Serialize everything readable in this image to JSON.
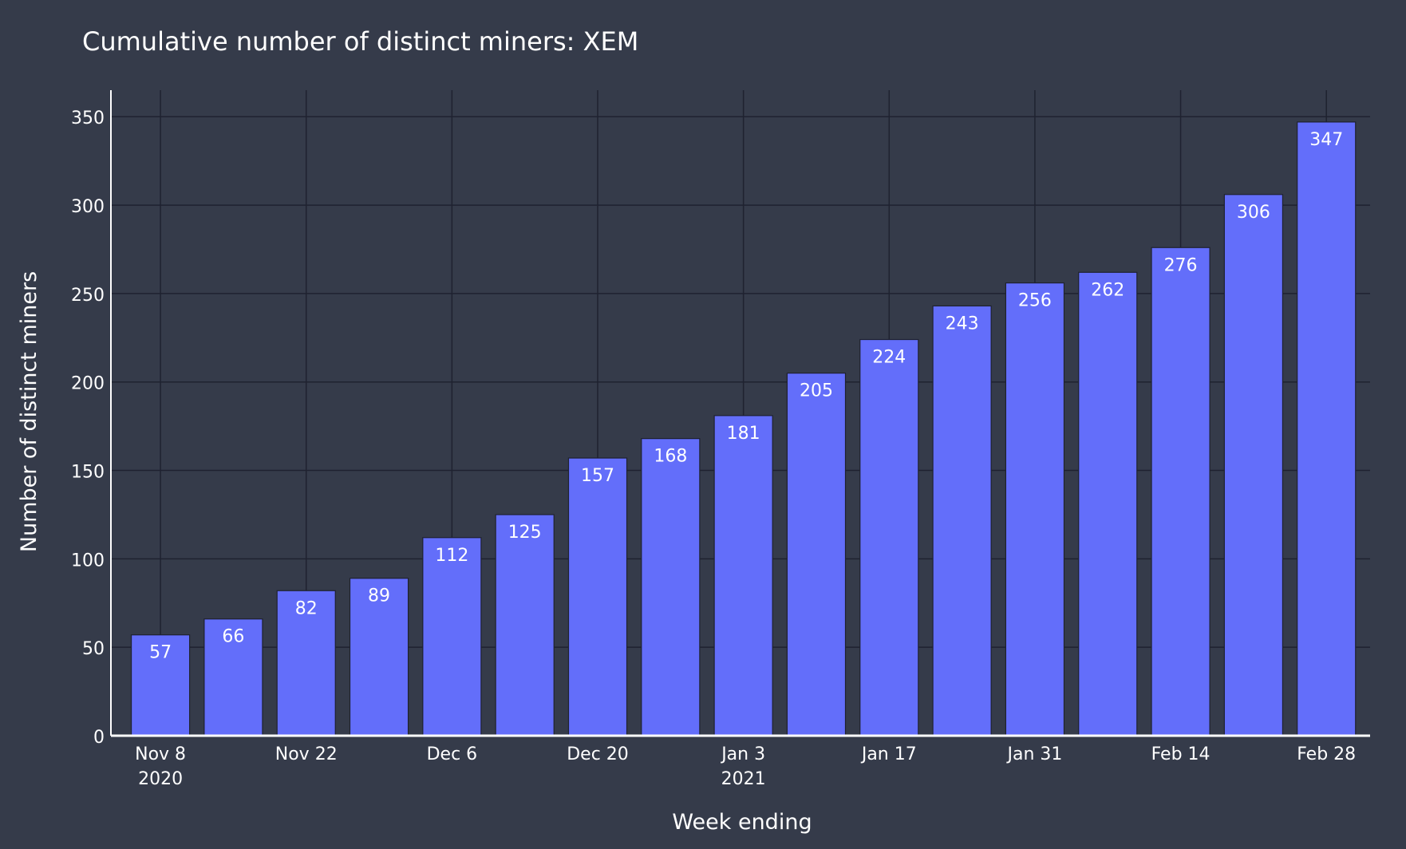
{
  "chart_data": {
    "type": "bar",
    "title": "Cumulative number of distinct miners: XEM",
    "xlabel": "Week ending",
    "ylabel": "Number of distinct miners",
    "categories": [
      "2020-11-08",
      "2020-11-15",
      "2020-11-22",
      "2020-11-29",
      "2020-12-06",
      "2020-12-13",
      "2020-12-20",
      "2020-12-27",
      "2021-01-03",
      "2021-01-10",
      "2021-01-17",
      "2021-01-24",
      "2021-01-31",
      "2021-02-07",
      "2021-02-14",
      "2021-02-21",
      "2021-02-28"
    ],
    "values": [
      57,
      66,
      82,
      89,
      112,
      125,
      157,
      168,
      181,
      205,
      224,
      243,
      256,
      262,
      276,
      306,
      347
    ],
    "data_labels": [
      "57",
      "66",
      "82",
      "89",
      "112",
      "125",
      "157",
      "168",
      "181",
      "205",
      "224",
      "243",
      "256",
      "262",
      "276",
      "306",
      "347"
    ],
    "ylim": [
      0,
      365
    ],
    "y_ticks": [
      0,
      50,
      100,
      150,
      200,
      250,
      300,
      350
    ],
    "y_tick_labels": [
      "0",
      "50",
      "100",
      "150",
      "200",
      "250",
      "300",
      "350"
    ],
    "x_ticks": [
      {
        "date": "2020-11-08",
        "label": "Nov 8",
        "sublabel": "2020"
      },
      {
        "date": "2020-11-22",
        "label": "Nov 22",
        "sublabel": ""
      },
      {
        "date": "2020-12-06",
        "label": "Dec 6",
        "sublabel": ""
      },
      {
        "date": "2020-12-20",
        "label": "Dec 20",
        "sublabel": ""
      },
      {
        "date": "2021-01-03",
        "label": "Jan 3",
        "sublabel": "2021"
      },
      {
        "date": "2021-01-17",
        "label": "Jan 17",
        "sublabel": ""
      },
      {
        "date": "2021-01-31",
        "label": "Jan 31",
        "sublabel": ""
      },
      {
        "date": "2021-02-14",
        "label": "Feb 14",
        "sublabel": ""
      },
      {
        "date": "2021-02-28",
        "label": "Feb 28",
        "sublabel": ""
      }
    ],
    "grid": true,
    "colors": {
      "background": "#353b4a",
      "bar": "#636efa",
      "bar_outline": "#1f2230",
      "grid": "#1f2230",
      "text": "#ffffff"
    }
  }
}
